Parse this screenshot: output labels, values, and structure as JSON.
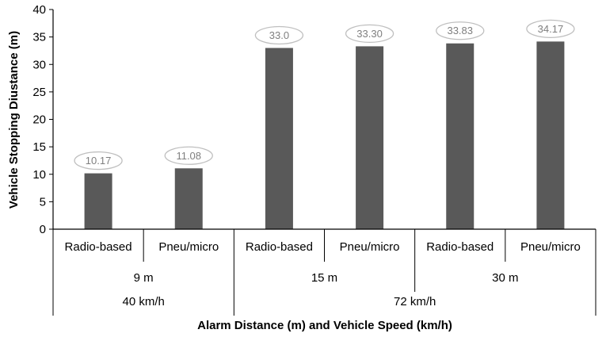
{
  "chart_data": {
    "type": "bar",
    "ylabel": "Vehicle Stopping Diustance (m)",
    "xlabel": "Alarm Distance (m) and Vehicle Speed (km/h)",
    "ylim": [
      0,
      40
    ],
    "yticks": [
      "0",
      "5",
      "10",
      "15",
      "20",
      "25",
      "30",
      "35",
      "40"
    ],
    "categories": [
      "Radio-based",
      "Pneu/micro",
      "Radio-based",
      "Pneu/micro",
      "Radio-based",
      "Pneu/micro"
    ],
    "values": [
      10.17,
      11.08,
      33.0,
      33.3,
      33.83,
      34.17
    ],
    "data_labels": [
      "10.17",
      "11.08",
      "33.0",
      "33.30",
      "33.83",
      "34.17"
    ],
    "alarm_distance_groups": [
      {
        "label": "9 m",
        "span": 2
      },
      {
        "label": "15 m",
        "span": 2
      },
      {
        "label": "30 m",
        "span": 2
      }
    ],
    "speed_groups": [
      {
        "label": "40 km/h",
        "span": 2
      },
      {
        "label": "72 km/h",
        "span": 4
      }
    ],
    "bar_color": "#595959",
    "label_color": "#7f7f7f",
    "grid": false,
    "legend": "none"
  }
}
